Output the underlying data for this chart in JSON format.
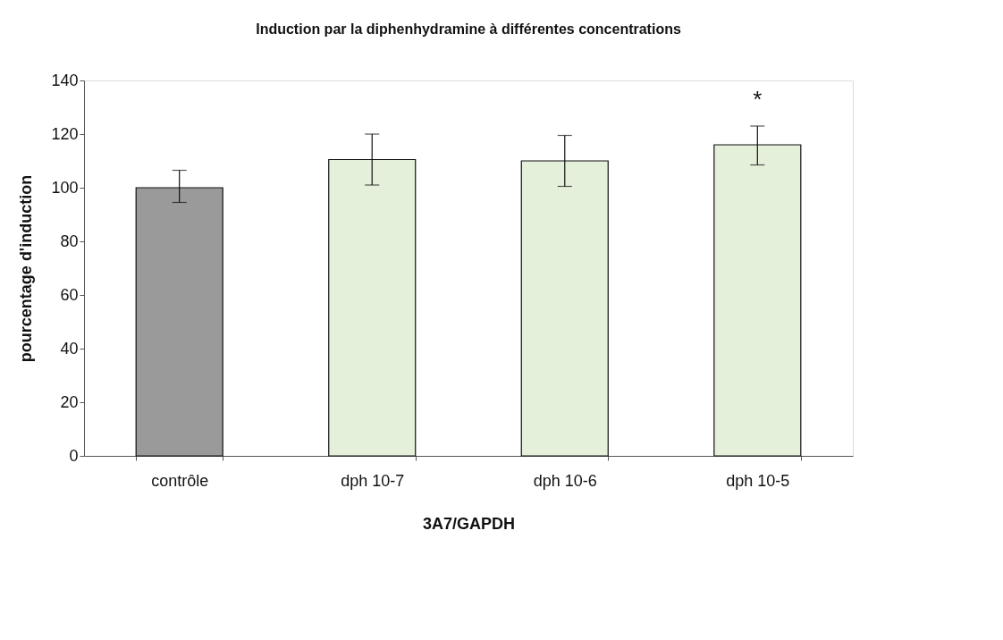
{
  "chart_data": {
    "type": "bar",
    "title": "Induction par la diphenhydramine à différentes concentrations",
    "xlabel": "3A7/GAPDH",
    "ylabel": "pourcentage d'induction",
    "categories": [
      "contrôle",
      "dph 10-7",
      "dph 10-6",
      "dph 10-5"
    ],
    "values": [
      100,
      110.5,
      110,
      116
    ],
    "colors": [
      "#9a9a9a",
      "#e4f0da",
      "#e4f0da",
      "#e4f0da"
    ],
    "errors": [
      [
        94.5,
        106.5
      ],
      [
        101,
        120
      ],
      [
        100.5,
        119.5
      ],
      [
        108.5,
        123
      ]
    ],
    "ylim": [
      0,
      140
    ],
    "yticks": [
      0,
      20,
      40,
      60,
      80,
      100,
      120,
      140
    ],
    "grid": false,
    "annotations": [
      "*"
    ]
  }
}
